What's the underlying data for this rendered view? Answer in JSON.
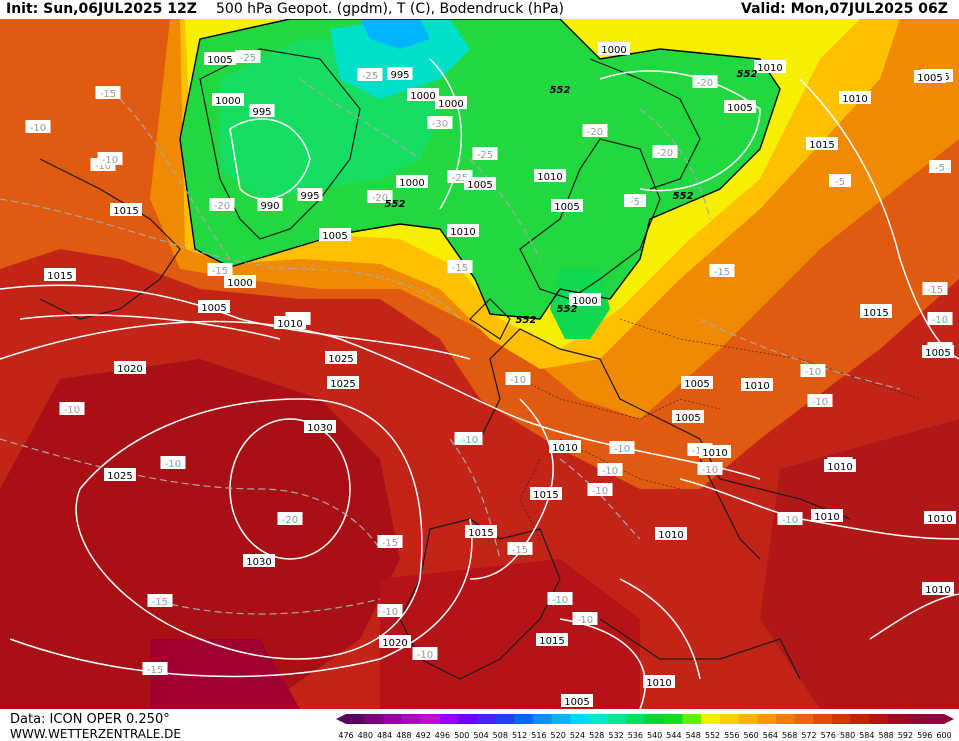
{
  "header": {
    "init": "Init: Sun,06JUL2025 12Z",
    "title": "500 hPa Geopot. (gpdm), T (C), Bodendruck (hPa)",
    "valid": "Valid: Mon,07JUL2025 06Z"
  },
  "footer": {
    "data_source": "Data: ICON OPER 0.250°",
    "website": "WWW.WETTERZENTRALE.DE"
  },
  "legend": {
    "levels": [
      "476",
      "480",
      "484",
      "488",
      "492",
      "496",
      "500",
      "504",
      "508",
      "512",
      "516",
      "520",
      "524",
      "528",
      "532",
      "536",
      "540",
      "544",
      "548",
      "552",
      "556",
      "560",
      "564",
      "568",
      "572",
      "576",
      "580",
      "584",
      "588",
      "592",
      "596",
      "600"
    ],
    "colors": [
      "#5a0060",
      "#7a0080",
      "#9400a6",
      "#b000c8",
      "#c800e0",
      "#9a00ff",
      "#6e00ff",
      "#4a20ff",
      "#2040ff",
      "#0066ff",
      "#0090ff",
      "#00b4ff",
      "#00d8ff",
      "#00e8c8",
      "#00e890",
      "#00e060",
      "#00d830",
      "#10e020",
      "#60f000",
      "#f0f000",
      "#ffd000",
      "#ffb400",
      "#ff9800",
      "#ff7c00",
      "#f86000",
      "#e84800",
      "#d83400",
      "#c82000",
      "#b81010",
      "#a80020",
      "#980030",
      "#900040"
    ]
  },
  "map": {
    "geopotential_labels": [
      "552",
      "552",
      "552",
      "552",
      "552",
      "552"
    ],
    "temperature_labels": [
      "-25",
      "-25",
      "-30",
      "-25",
      "-20",
      "-25",
      "-15",
      "-20",
      "-20",
      "-20",
      "-20",
      "-15",
      "-15",
      "-15",
      "-15",
      "-10",
      "-10",
      "-10",
      "-10",
      "-15",
      "-15",
      "-20",
      "-15",
      "-15",
      "-10",
      "-10",
      "-10",
      "-10",
      "-10",
      "-10",
      "-10",
      "-5",
      "-5",
      "-5",
      "-10",
      "-10",
      "-10",
      "-15",
      "-10",
      "-10",
      "-10",
      "-10",
      "-10",
      "-10",
      "-10",
      "-10",
      "-10"
    ],
    "pressure_labels": [
      "1005",
      "1000",
      "995",
      "995",
      "1000",
      "1000",
      "990",
      "995",
      "1000",
      "1005",
      "1000",
      "1005",
      "1005",
      "1010",
      "1010",
      "1005",
      "1000",
      "1000",
      "1005",
      "1015",
      "1015",
      "1005",
      "1015",
      "1010",
      "1015",
      "1005",
      "1010",
      "1015",
      "1020",
      "1025",
      "1030",
      "1025",
      "1030",
      "1020",
      "1025",
      "1015",
      "1010",
      "1005",
      "1010",
      "1005",
      "1010",
      "1010",
      "1010",
      "1010",
      "1015",
      "1015",
      "1005",
      "1015",
      "1010",
      "1010",
      "1010",
      "1010"
    ]
  }
}
